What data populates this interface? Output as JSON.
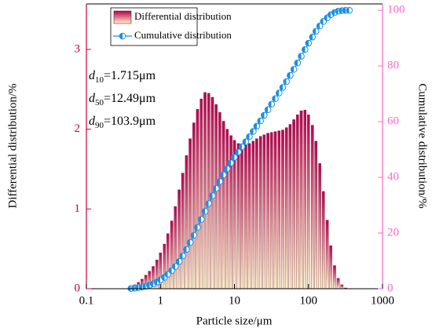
{
  "chart_data": {
    "type": "bar_line",
    "xlabel": "Particle size/μm",
    "ylabel": "Differential distribution/%",
    "y2label": "Cumulative distribution/%",
    "xscale": "log",
    "xlim": [
      0.1,
      1000
    ],
    "xticks": [
      0.1,
      1,
      10,
      100,
      1000
    ],
    "ylim": [
      0,
      3.57
    ],
    "yticks": [
      0,
      1,
      2,
      3
    ],
    "y2lim": [
      0,
      102.3
    ],
    "y2ticks": [
      0,
      20,
      40,
      60,
      80,
      100
    ],
    "y_axis_color": "#cc0033",
    "y2_axis_color": "#ff66cc",
    "legend_position": "upper left",
    "annotations": [
      {
        "symbol": "d",
        "sub": "10",
        "text": "=1.715μm"
      },
      {
        "symbol": "d",
        "sub": "50",
        "text": "=12.49μm"
      },
      {
        "symbol": "d",
        "sub": "90",
        "text": "=103.9μm"
      }
    ],
    "x": [
      0.4,
      0.449,
      0.504,
      0.565,
      0.634,
      0.711,
      0.798,
      0.896,
      1.0,
      1.13,
      1.26,
      1.42,
      1.59,
      1.79,
      2.0,
      2.25,
      2.52,
      2.83,
      3.17,
      3.56,
      4.0,
      4.49,
      5.04,
      5.65,
      6.34,
      7.11,
      7.98,
      8.96,
      10,
      11.3,
      12.6,
      14.2,
      15.9,
      17.9,
      20,
      22.5,
      25.2,
      28.3,
      31.7,
      35.6,
      40,
      44.9,
      50.4,
      56.5,
      63.4,
      71.1,
      79.8,
      89.6,
      100,
      113,
      126,
      142,
      159,
      179,
      200,
      225,
      252,
      283,
      317,
      356
    ],
    "series": [
      {
        "name": "Differential distribution",
        "kind": "bar",
        "color": "#b8004f",
        "color_bottom": "#fff2c4",
        "values": [
          0.02,
          0.05,
          0.08,
          0.12,
          0.17,
          0.22,
          0.28,
          0.36,
          0.45,
          0.56,
          0.69,
          0.85,
          1.03,
          1.24,
          1.45,
          1.67,
          1.88,
          2.08,
          2.25,
          2.38,
          2.46,
          2.45,
          2.4,
          2.31,
          2.21,
          2.1,
          2.0,
          1.92,
          1.86,
          1.82,
          1.8,
          1.8,
          1.82,
          1.85,
          1.88,
          1.91,
          1.93,
          1.95,
          1.96,
          1.97,
          1.98,
          1.99,
          2.02,
          2.06,
          2.12,
          2.18,
          2.23,
          2.24,
          2.18,
          2.05,
          1.85,
          1.57,
          1.22,
          0.86,
          0.54,
          0.29,
          0.13,
          0.05,
          0.01,
          0
        ]
      },
      {
        "name": "Cumulative distribution",
        "kind": "line",
        "axis": "y2",
        "color": "#1e90e0",
        "values": [
          0.1,
          0.2,
          0.4,
          0.6,
          0.9,
          1.3,
          1.8,
          2.4,
          3.2,
          4.1,
          5.2,
          6.5,
          8.0,
          9.8,
          11.8,
          14.1,
          16.6,
          19.2,
          22.0,
          24.9,
          27.8,
          30.6,
          33.4,
          36.0,
          38.5,
          40.9,
          43.1,
          45.2,
          47.2,
          49.1,
          51.0,
          52.8,
          54.6,
          56.5,
          58.4,
          60.3,
          62.3,
          64.3,
          66.3,
          68.3,
          70.3,
          72.3,
          74.4,
          76.6,
          78.8,
          81.1,
          83.5,
          85.9,
          88.2,
          90.4,
          92.5,
          94.4,
          96.0,
          97.3,
          98.4,
          99.2,
          99.7,
          99.9,
          100,
          100
        ]
      }
    ]
  }
}
